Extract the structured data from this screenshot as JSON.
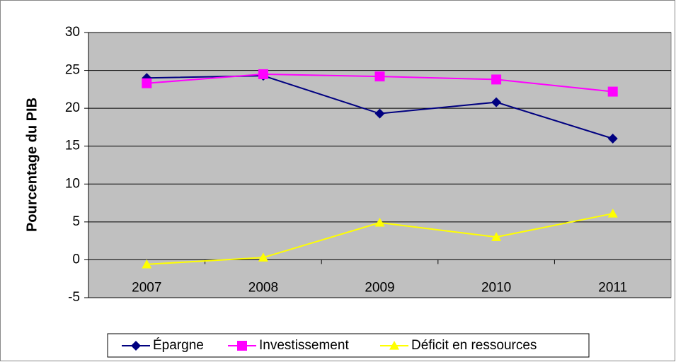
{
  "chart_data": {
    "type": "line",
    "y_label": "Pourcentage du PIB",
    "categories": [
      "2007",
      "2008",
      "2009",
      "2010",
      "2011"
    ],
    "series": [
      {
        "name": "Épargne",
        "color": "#000080",
        "marker": "diamond",
        "values": [
          24.0,
          24.3,
          19.3,
          20.8,
          16.0
        ]
      },
      {
        "name": "Investissement",
        "color": "#ff00ff",
        "marker": "square",
        "values": [
          23.3,
          24.5,
          24.2,
          23.8,
          22.2
        ]
      },
      {
        "name": "Déficit en ressources",
        "color": "#ffff00",
        "marker": "triangle",
        "values": [
          -0.6,
          0.3,
          4.9,
          3.0,
          6.1
        ]
      }
    ],
    "ylim": [
      -5,
      30
    ],
    "yticks": [
      -5,
      0,
      5,
      10,
      15,
      20,
      25,
      30
    ],
    "grid": true,
    "legend": "bottom"
  }
}
